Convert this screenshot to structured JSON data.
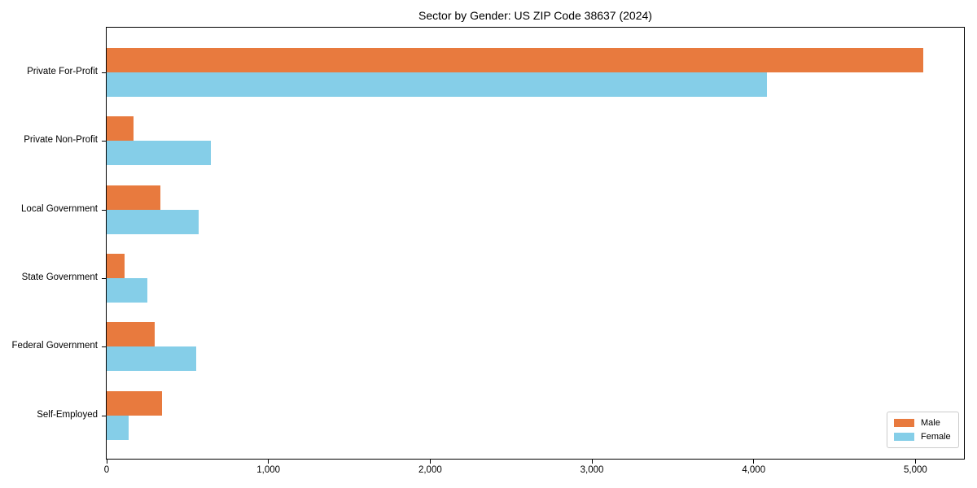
{
  "chart_data": {
    "type": "bar",
    "orientation": "horizontal",
    "title": "Sector by Gender: US ZIP Code 38637 (2024)",
    "categories": [
      "Private For-Profit",
      "Private Non-Profit",
      "Local Government",
      "State Government",
      "Federal Government",
      "Self-Employed"
    ],
    "series": [
      {
        "name": "Male",
        "color": "#e87a3e",
        "values": [
          5050,
          165,
          330,
          110,
          295,
          340
        ]
      },
      {
        "name": "Female",
        "color": "#85cee8",
        "values": [
          4080,
          645,
          570,
          250,
          555,
          135
        ]
      }
    ],
    "xlabel": "",
    "ylabel": "",
    "xlim": [
      0,
      5300
    ],
    "xticks": [
      {
        "value": 0,
        "label": "0"
      },
      {
        "value": 1000,
        "label": "1,000"
      },
      {
        "value": 2000,
        "label": "2,000"
      },
      {
        "value": 3000,
        "label": "3,000"
      },
      {
        "value": 4000,
        "label": "4,000"
      },
      {
        "value": 5000,
        "label": "5,000"
      }
    ],
    "grid": false,
    "legend": {
      "position": "lower right"
    }
  }
}
